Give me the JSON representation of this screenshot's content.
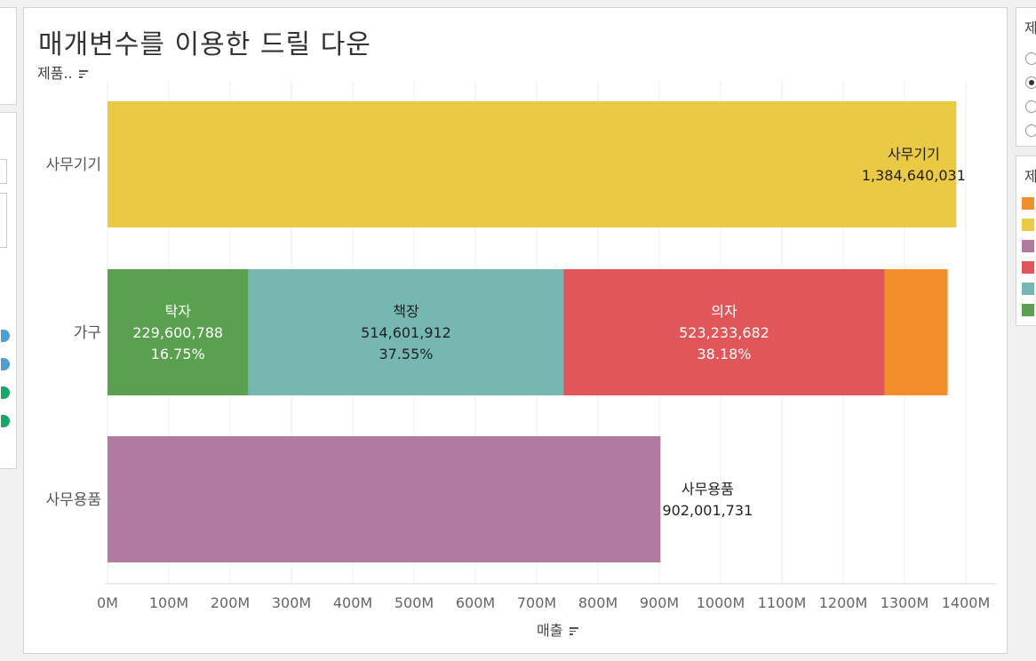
{
  "chart_data": {
    "type": "bar",
    "orientation": "horizontal",
    "stacked": true,
    "title": "매개변수를 이용한 드릴 다운",
    "row_header": "제품..",
    "xlabel": "매출",
    "xlim": [
      0,
      1450000000
    ],
    "x_ticks": [
      0,
      100000000,
      200000000,
      300000000,
      400000000,
      500000000,
      600000000,
      700000000,
      800000000,
      900000000,
      1000000000,
      1100000000,
      1200000000,
      1300000000,
      1400000000
    ],
    "x_tick_labels": [
      "0M",
      "100M",
      "200M",
      "300M",
      "400M",
      "500M",
      "600M",
      "700M",
      "800M",
      "900M",
      "1000M",
      "1100M",
      "1200M",
      "1300M",
      "1400M"
    ],
    "categories": [
      "사무기기",
      "가구",
      "사무용품"
    ],
    "rows": [
      {
        "category": "사무기기",
        "segments": [
          {
            "name": "사무기기",
            "value": 1384640031,
            "value_label": "1,384,640,031",
            "pct_label": "",
            "color": "#eac945",
            "label_position": "inside-end",
            "label_color": "#222222"
          }
        ]
      },
      {
        "category": "가구",
        "segments": [
          {
            "name": "탁자",
            "value": 229600788,
            "value_label": "229,600,788",
            "pct_label": "16.75%",
            "color": "#59a14f",
            "label_position": "center",
            "label_color": "#ffffff"
          },
          {
            "name": "책장",
            "value": 514601912,
            "value_label": "514,601,912",
            "pct_label": "37.55%",
            "color": "#76b7b2",
            "label_position": "center",
            "label_color": "#222222"
          },
          {
            "name": "의자",
            "value": 523233682,
            "value_label": "523,233,682",
            "pct_label": "38.18%",
            "color": "#e15759",
            "label_position": "center",
            "label_color": "#ffffff"
          },
          {
            "name": "",
            "value": 103000000,
            "value_label": "",
            "pct_label": "",
            "color": "#f28e2b",
            "label_position": "none",
            "label_color": "#222222"
          }
        ]
      },
      {
        "category": "사무용품",
        "segments": [
          {
            "name": "사무용품",
            "value": 902001731,
            "value_label": "902,001,731",
            "pct_label": "",
            "color": "#b07aa1",
            "label_position": "outside-end",
            "label_color": "#222222"
          }
        ]
      }
    ],
    "grid": true
  },
  "right_panel": {
    "param_title_first_char": "제",
    "param_options_count": 4,
    "param_selected_index": 1,
    "legend_title_first_char": "제",
    "legend_colors": [
      "#f28e2b",
      "#eac945",
      "#b07aa1",
      "#e15759",
      "#76b7b2",
      "#59a14f"
    ]
  },
  "left_panel": {
    "indicator_colors": [
      "#4e9fd1",
      "#4e9fd1",
      "#16a868",
      "#16a868"
    ]
  }
}
